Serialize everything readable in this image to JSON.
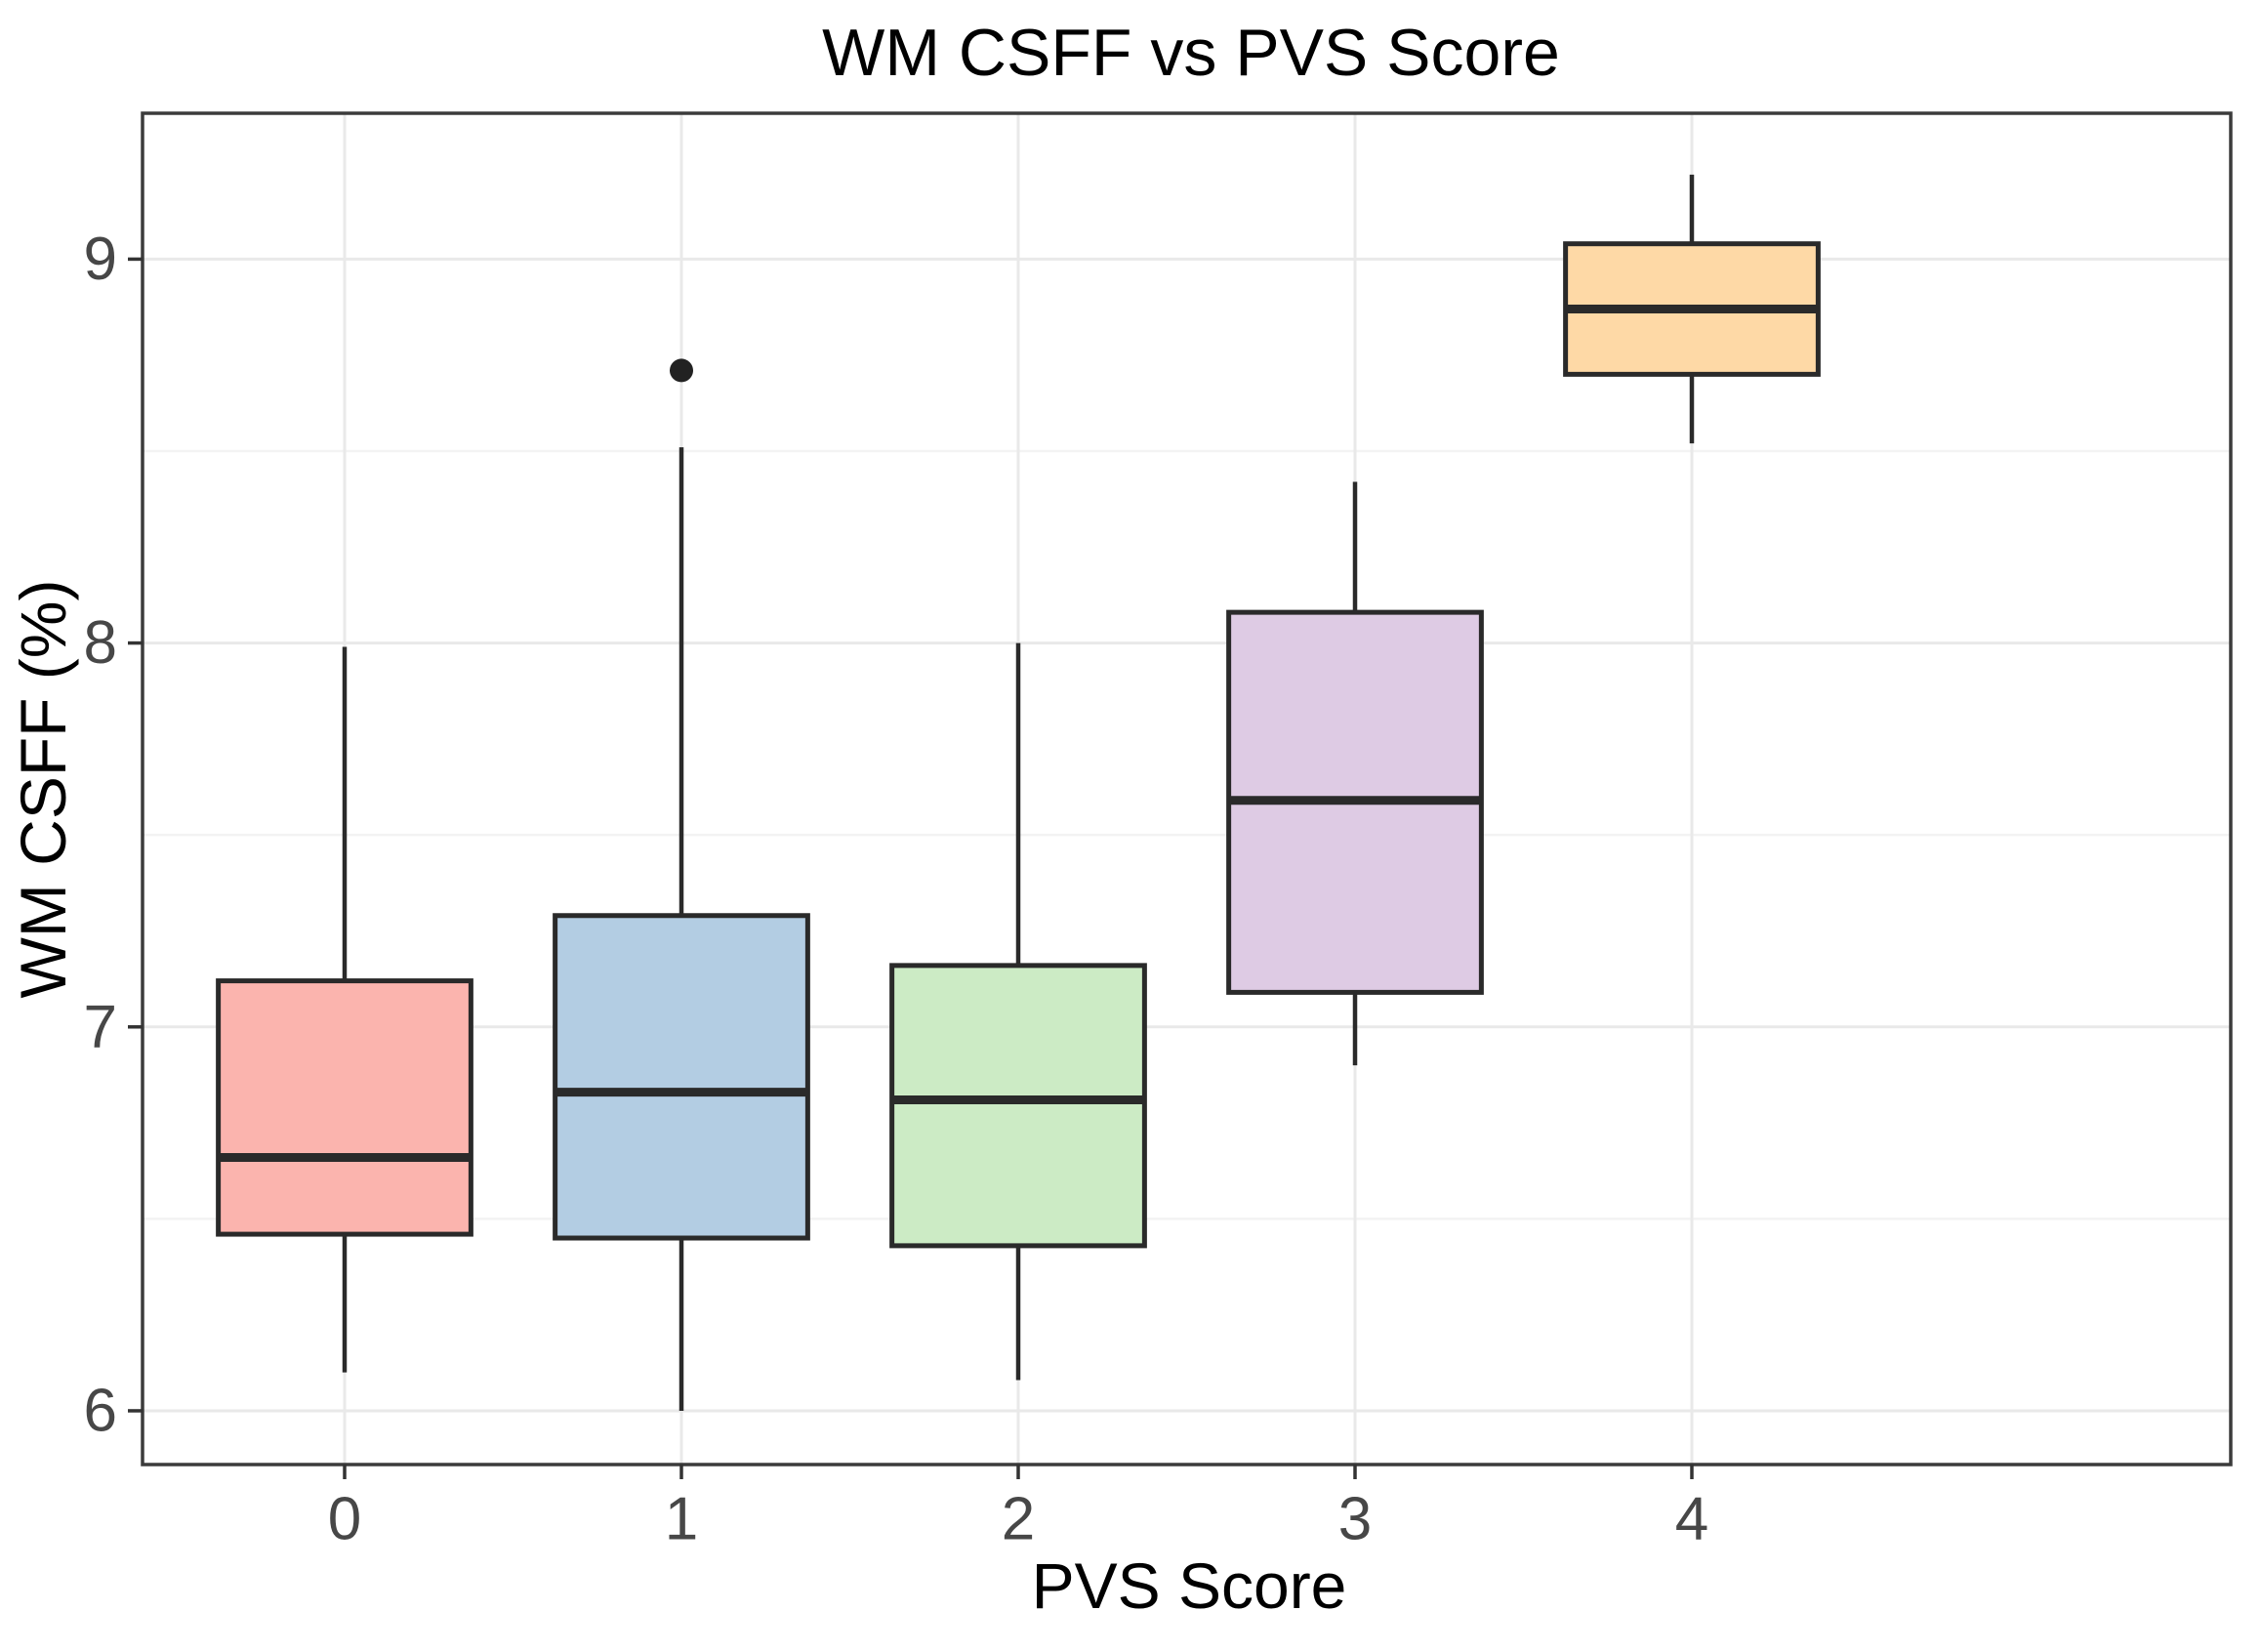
{
  "figure": {
    "background": "#FFFFFF"
  },
  "chart_data": {
    "type": "boxplot",
    "title": "WM CSFF vs PVS Score",
    "xlabel": "PVS Score",
    "ylabel": "WM CSFF (%)",
    "categories": [
      "0",
      "1",
      "2",
      "3",
      "4"
    ],
    "ylim": [
      5.86,
      9.38
    ],
    "yticks_major": [
      6,
      7,
      8,
      9
    ],
    "yticks_minor": [
      6.5,
      7.5,
      8.5
    ],
    "grid": "horizontal major+minor light gray, vertical major at each category",
    "legend": "none",
    "series": [
      {
        "category": "0",
        "fill": "#FBB4AE",
        "whisker_low": 6.1,
        "q1": 6.46,
        "median": 6.66,
        "q3": 7.12,
        "whisker_high": 7.99,
        "outliers": []
      },
      {
        "category": "1",
        "fill": "#B3CDE3",
        "whisker_low": 6.0,
        "q1": 6.45,
        "median": 6.83,
        "q3": 7.29,
        "whisker_high": 8.51,
        "outliers": [
          8.71
        ]
      },
      {
        "category": "2",
        "fill": "#CCEBC5",
        "whisker_low": 6.08,
        "q1": 6.43,
        "median": 6.81,
        "q3": 7.16,
        "whisker_high": 8.0,
        "outliers": []
      },
      {
        "category": "3",
        "fill": "#DECBE4",
        "whisker_low": 6.9,
        "q1": 7.09,
        "median": 7.59,
        "q3": 8.08,
        "whisker_high": 8.42,
        "outliers": []
      },
      {
        "category": "4",
        "fill": "#FED9A6",
        "whisker_low": 8.52,
        "q1": 8.7,
        "median": 8.87,
        "q3": 9.04,
        "whisker_high": 9.22,
        "outliers": []
      }
    ],
    "colors": {
      "box_stroke": "#2A2A2A",
      "median_line": "#2A2A2A",
      "whisker": "#2A2A2A",
      "outlier": "#222222",
      "grid_major": "#E9E9E9",
      "grid_minor": "#F3F3F3",
      "panel_border": "#3B3B3B",
      "tick_mark": "#333333",
      "tick_label": "#474747",
      "text": "#000000"
    }
  }
}
